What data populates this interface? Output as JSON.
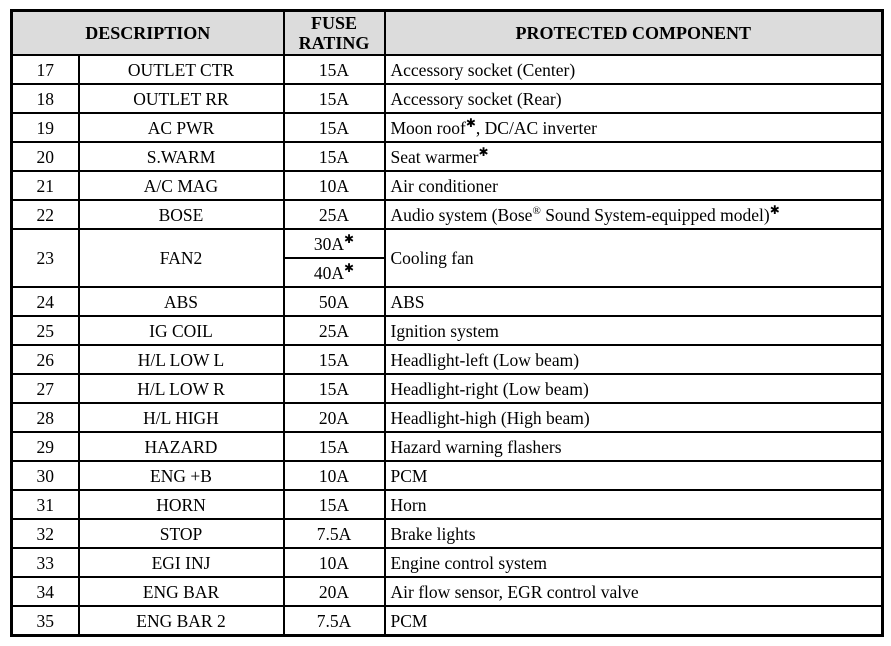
{
  "table": {
    "headers": {
      "description": "DESCRIPTION",
      "fuse_rating": "FUSE RATING",
      "protected_component": "PROTECTED COMPONENT"
    },
    "rows": [
      {
        "no": "17",
        "desc": "OUTLET CTR",
        "ratings": [
          [
            {
              "text": "15A"
            }
          ]
        ],
        "component": [
          {
            "text": "Accessory socket (Center)"
          }
        ]
      },
      {
        "no": "18",
        "desc": "OUTLET RR",
        "ratings": [
          [
            {
              "text": "15A"
            }
          ]
        ],
        "component": [
          {
            "text": "Accessory socket (Rear)"
          }
        ]
      },
      {
        "no": "19",
        "desc": "AC PWR",
        "ratings": [
          [
            {
              "text": "15A"
            }
          ]
        ],
        "component": [
          {
            "text": "Moon roof"
          },
          {
            "sup": "✱"
          },
          {
            "text": ", DC/AC inverter"
          }
        ]
      },
      {
        "no": "20",
        "desc": "S.WARM",
        "ratings": [
          [
            {
              "text": "15A"
            }
          ]
        ],
        "component": [
          {
            "text": "Seat warmer"
          },
          {
            "sup": "✱"
          }
        ]
      },
      {
        "no": "21",
        "desc": "A/C MAG",
        "ratings": [
          [
            {
              "text": "10A"
            }
          ]
        ],
        "component": [
          {
            "text": "Air conditioner"
          }
        ]
      },
      {
        "no": "22",
        "desc": "BOSE",
        "ratings": [
          [
            {
              "text": "25A"
            }
          ]
        ],
        "component": [
          {
            "text": "Audio system (Bose"
          },
          {
            "sup": "®"
          },
          {
            "text": " Sound System-equipped model)"
          },
          {
            "sup": "✱"
          }
        ]
      },
      {
        "no": "23",
        "desc": "FAN2",
        "ratings": [
          [
            {
              "text": "30A"
            },
            {
              "sup": "✱"
            }
          ],
          [
            {
              "text": "40A"
            },
            {
              "sup": "✱"
            }
          ]
        ],
        "component": [
          {
            "text": "Cooling fan"
          }
        ]
      },
      {
        "no": "24",
        "desc": "ABS",
        "ratings": [
          [
            {
              "text": "50A"
            }
          ]
        ],
        "component": [
          {
            "text": "ABS"
          }
        ]
      },
      {
        "no": "25",
        "desc": "IG COIL",
        "ratings": [
          [
            {
              "text": "25A"
            }
          ]
        ],
        "component": [
          {
            "text": "Ignition system"
          }
        ]
      },
      {
        "no": "26",
        "desc": "H/L LOW L",
        "ratings": [
          [
            {
              "text": "15A"
            }
          ]
        ],
        "component": [
          {
            "text": "Headlight-left (Low beam)"
          }
        ]
      },
      {
        "no": "27",
        "desc": "H/L LOW R",
        "ratings": [
          [
            {
              "text": "15A"
            }
          ]
        ],
        "component": [
          {
            "text": "Headlight-right (Low beam)"
          }
        ]
      },
      {
        "no": "28",
        "desc": "H/L HIGH",
        "ratings": [
          [
            {
              "text": "20A"
            }
          ]
        ],
        "component": [
          {
            "text": "Headlight-high (High beam)"
          }
        ]
      },
      {
        "no": "29",
        "desc": "HAZARD",
        "ratings": [
          [
            {
              "text": "15A"
            }
          ]
        ],
        "component": [
          {
            "text": "Hazard warning flashers"
          }
        ]
      },
      {
        "no": "30",
        "desc": "ENG +B",
        "ratings": [
          [
            {
              "text": "10A"
            }
          ]
        ],
        "component": [
          {
            "text": "PCM"
          }
        ]
      },
      {
        "no": "31",
        "desc": "HORN",
        "ratings": [
          [
            {
              "text": "15A"
            }
          ]
        ],
        "component": [
          {
            "text": "Horn"
          }
        ]
      },
      {
        "no": "32",
        "desc": "STOP",
        "ratings": [
          [
            {
              "text": "7.5A"
            }
          ]
        ],
        "component": [
          {
            "text": "Brake lights"
          }
        ]
      },
      {
        "no": "33",
        "desc": "EGI INJ",
        "ratings": [
          [
            {
              "text": "10A"
            }
          ]
        ],
        "component": [
          {
            "text": "Engine control system"
          }
        ]
      },
      {
        "no": "34",
        "desc": "ENG BAR",
        "ratings": [
          [
            {
              "text": "20A"
            }
          ]
        ],
        "component": [
          {
            "text": "Air flow sensor, EGR control valve"
          }
        ]
      },
      {
        "no": "35",
        "desc": "ENG BAR 2",
        "ratings": [
          [
            {
              "text": "7.5A"
            }
          ]
        ],
        "component": [
          {
            "text": "PCM"
          }
        ]
      }
    ]
  },
  "colors": {
    "header_background": "#dcdcdc",
    "border": "#000000",
    "text": "#000000"
  }
}
